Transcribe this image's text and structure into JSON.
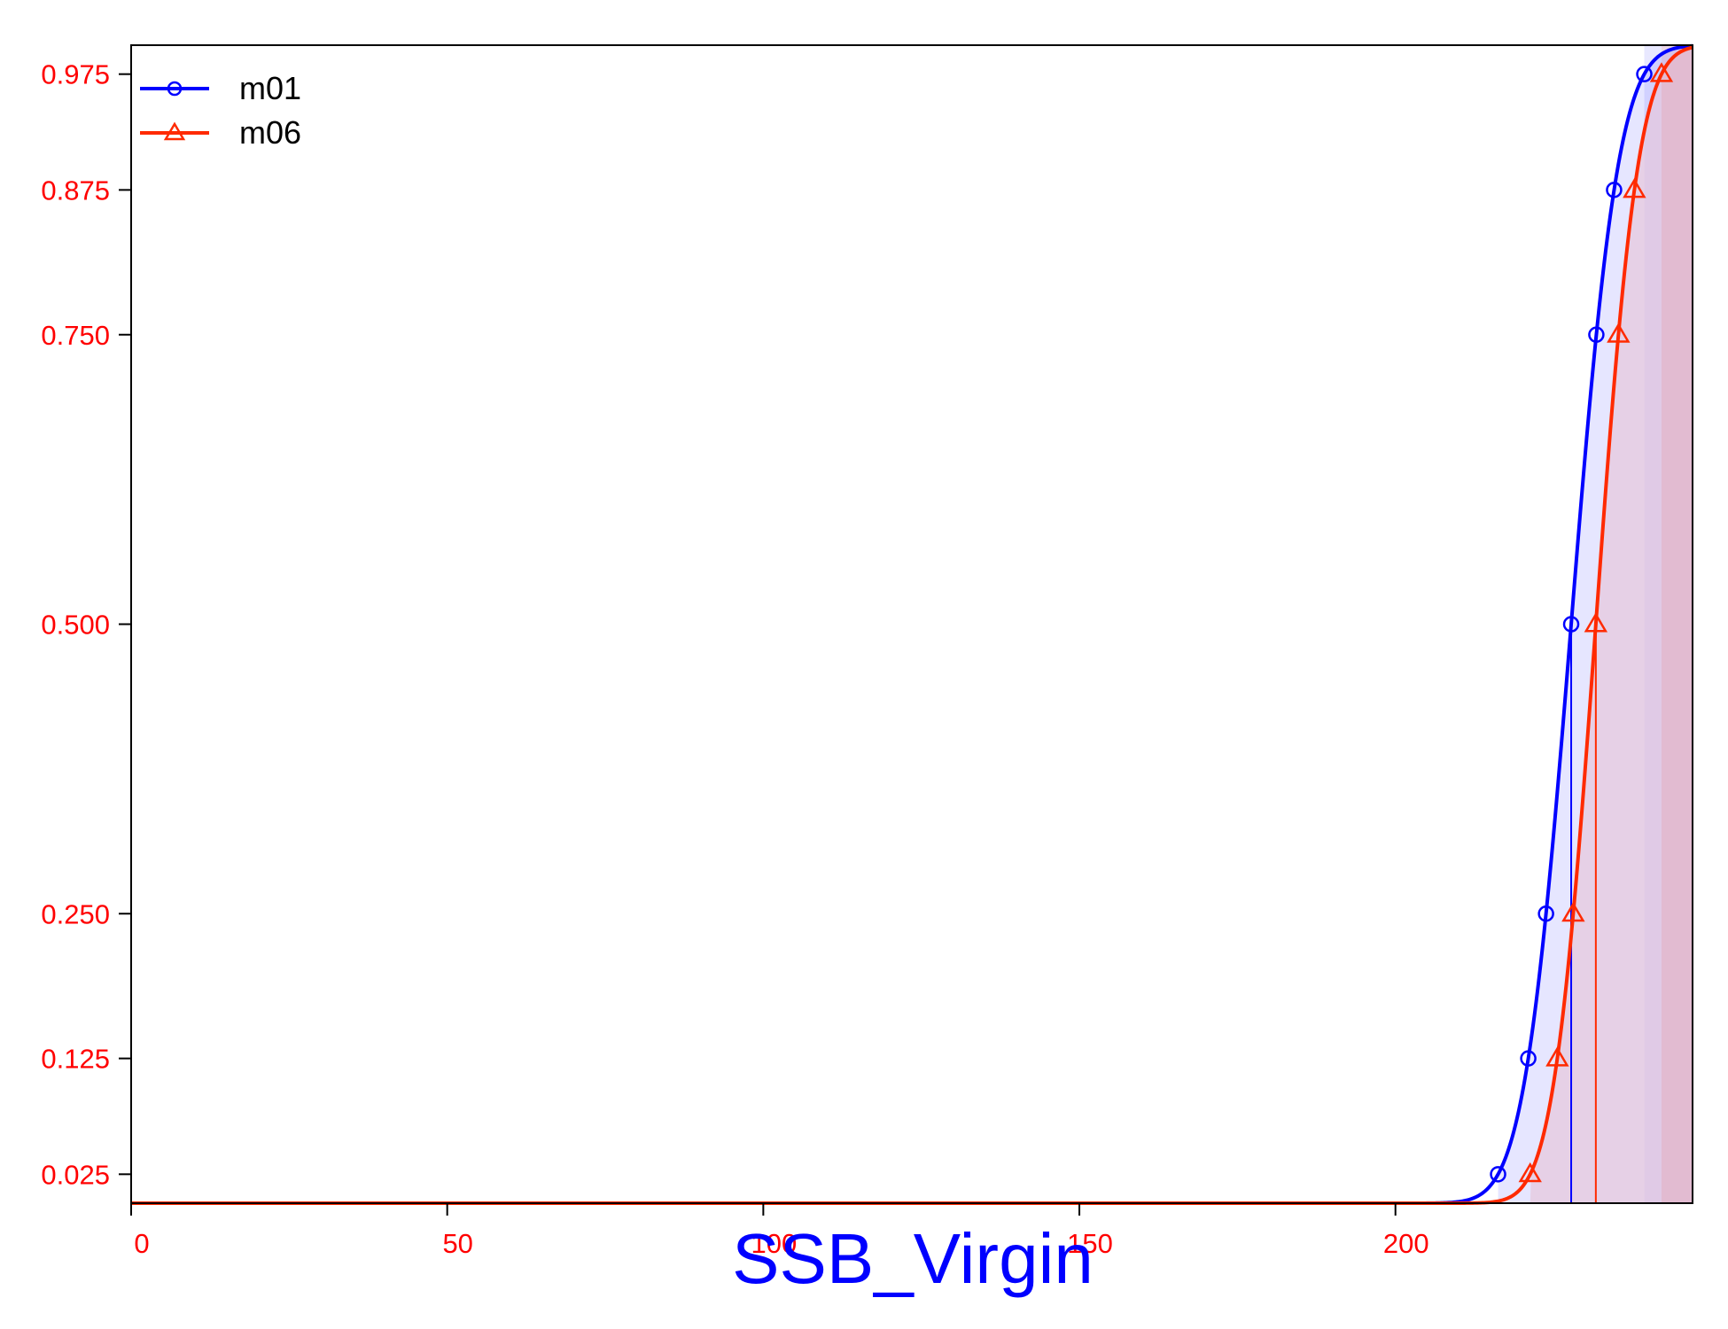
{
  "chart_data": {
    "type": "line",
    "title": "",
    "xlabel": "SSB_Virgin",
    "ylabel": "",
    "xlim": [
      0,
      247
    ],
    "ylim_prob": [
      0.0,
      1.0
    ],
    "y_scale": "normal-probability",
    "x_ticks": [
      "0",
      "50",
      "100",
      "150",
      "200"
    ],
    "x_tick_values": [
      0,
      50,
      100,
      150,
      200
    ],
    "y_ticks": [
      "0.025",
      "0.125",
      "0.250",
      "0.500",
      "0.750",
      "0.875",
      "0.975"
    ],
    "y_tick_values": [
      0.025,
      0.125,
      0.25,
      0.5,
      0.75,
      0.875,
      0.975
    ],
    "legend_position": "top-left",
    "grid": false,
    "series": [
      {
        "name": "m01",
        "color": "#0000ff",
        "marker": "circle",
        "fill": "#dcdcff",
        "mean": 227.8,
        "sd": 5.9,
        "median": 227.8
      },
      {
        "name": "m06",
        "color": "#ff2a00",
        "marker": "triangle",
        "fill": "#e6c8dc",
        "mean": 231.7,
        "sd": 5.3,
        "median": 231.7
      }
    ]
  }
}
